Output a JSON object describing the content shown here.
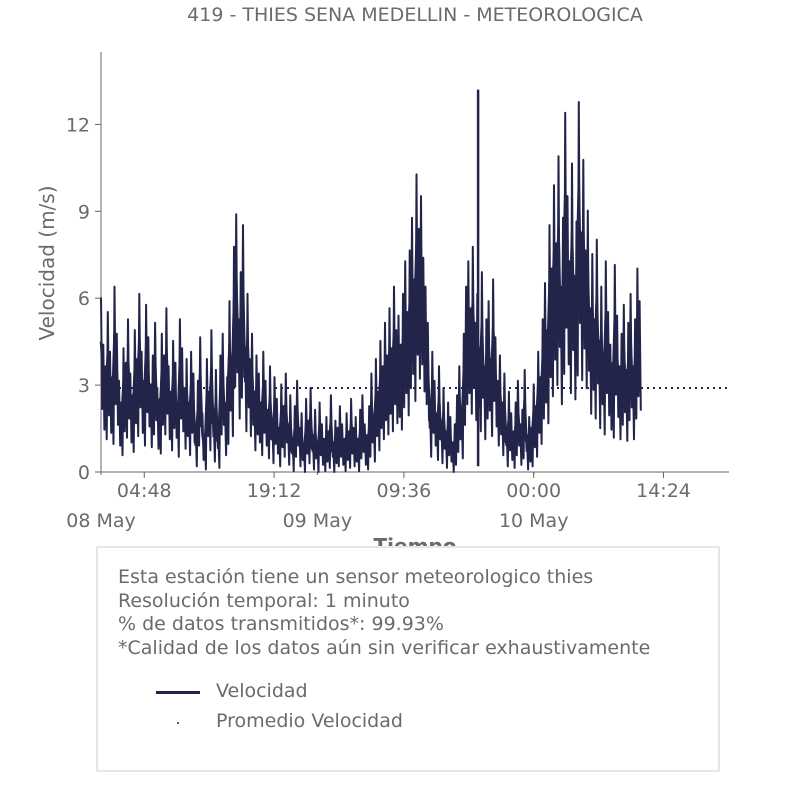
{
  "chart_data": {
    "type": "line",
    "title": "419 - THIES SENA MEDELLIN - METEOROLOGICA",
    "xlabel": "Tiempo",
    "ylabel": "Velocidad (m/s)",
    "ylim": [
      0,
      14.5
    ],
    "yticks": [
      0,
      3,
      6,
      9,
      12
    ],
    "xlim": [
      "2023-05-08 00:00",
      "2023-05-10 21:40"
    ],
    "xticks": [
      {
        "label": "04:48",
        "time": "2023-05-08 04:48"
      },
      {
        "label": "19:12",
        "time": "2023-05-08 19:12"
      },
      {
        "label": "09:36",
        "time": "2023-05-09 09:36"
      },
      {
        "label": "00:00",
        "time": "2023-05-10 00:00"
      },
      {
        "label": "14:24",
        "time": "2023-05-10 14:24"
      }
    ],
    "date_labels": [
      {
        "label": "08 May",
        "time": "2023-05-08 00:00"
      },
      {
        "label": "09 May",
        "time": "2023-05-09 00:00"
      },
      {
        "label": "10 May",
        "time": "2023-05-10 00:00"
      }
    ],
    "grid": false,
    "series": [
      {
        "name": "Velocidad",
        "style": "solid",
        "color": "#22244a",
        "x_start": "2023-05-08 00:00",
        "x_step_minutes": 15,
        "values": [
          4.5,
          3.2,
          2.6,
          4.1,
          3.0,
          2.3,
          4.8,
          3.5,
          2.2,
          1.6,
          3.1,
          2.7,
          3.9,
          2.4,
          1.8,
          3.6,
          2.8,
          4.6,
          3.0,
          2.2,
          4.3,
          3.4,
          2.1,
          2.9,
          3.8,
          2.0,
          1.7,
          3.5,
          2.9,
          4.2,
          2.6,
          1.9,
          3.3,
          2.7,
          1.5,
          3.9,
          3.1,
          2.0,
          2.8,
          1.6,
          3.0,
          2.4,
          0.9,
          2.2,
          3.4,
          1.3,
          0.7,
          2.8,
          1.9,
          3.6,
          1.2,
          2.5,
          0.8,
          2.9,
          3.5,
          1.6,
          2.3,
          4.4,
          2.8,
          5.9,
          6.8,
          3.9,
          5.2,
          6.5,
          3.1,
          4.6,
          2.8,
          3.5,
          1.9,
          2.9,
          2.4,
          1.6,
          3.0,
          2.2,
          1.4,
          2.6,
          1.1,
          2.3,
          1.7,
          0.9,
          2.1,
          1.5,
          2.4,
          1.0,
          1.8,
          0.6,
          1.5,
          2.2,
          0.9,
          1.3,
          0.4,
          1.7,
          1.1,
          2.0,
          0.7,
          1.4,
          0.5,
          1.6,
          1.0,
          0.6,
          1.2,
          0.8,
          1.8,
          0.5,
          1.1,
          0.9,
          1.5,
          1.0,
          0.6,
          1.3,
          0.8,
          1.7,
          0.9,
          1.2,
          0.6,
          1.4,
          1.8,
          1.0,
          0.7,
          1.5,
          2.4,
          1.2,
          2.8,
          1.9,
          3.3,
          2.6,
          3.8,
          2.9,
          4.2,
          3.1,
          4.8,
          3.6,
          4.0,
          3.2,
          4.6,
          5.5,
          4.1,
          5.8,
          6.7,
          5.0,
          7.9,
          6.4,
          7.3,
          5.6,
          4.8,
          3.8,
          1.5,
          3.0,
          2.2,
          1.3,
          2.6,
          1.1,
          2.0,
          0.8,
          1.6,
          1.2,
          0.5,
          1.0,
          1.8,
          2.6,
          1.4,
          3.5,
          4.8,
          5.5,
          4.2,
          5.9,
          3.8,
          4.6,
          3.1,
          5.2,
          2.6,
          3.9,
          4.4,
          2.8,
          5.0,
          3.4,
          2.2,
          2.9,
          1.6,
          2.4,
          0.9,
          1.9,
          1.3,
          0.8,
          1.6,
          2.2,
          1.0,
          1.4,
          2.5,
          0.7,
          1.2,
          0.9,
          2.1,
          1.5,
          3.0,
          2.3,
          3.9,
          4.9,
          3.6,
          6.5,
          5.3,
          7.6,
          6.0,
          8.4,
          4.8,
          6.7,
          9.6,
          7.3,
          5.5,
          8.2,
          5.1,
          6.6,
          9.9,
          6.3,
          8.3,
          5.8,
          6.9,
          4.2,
          5.7,
          3.9,
          6.1,
          3.3,
          4.8,
          2.9,
          5.5,
          4.1,
          3.2,
          2.7,
          5.4,
          4.0,
          2.6,
          3.5,
          4.3,
          2.5,
          3.8,
          4.6,
          2.6,
          3.9,
          5.3,
          4.4
        ]
      },
      {
        "name": "Promedio Velocidad",
        "style": "dotted",
        "color": "#22244a",
        "values": [
          2.9,
          2.9
        ]
      }
    ]
  },
  "info": {
    "lines": [
      "Esta estación tiene un sensor meteorologico thies",
      "Resolución temporal: 1 minuto",
      "% de datos transmitidos*: 99.93%",
      "*Calidad de los datos aún sin verificar exhaustivamente"
    ]
  },
  "legend": {
    "items": [
      "Velocidad",
      "Promedio Velocidad"
    ]
  }
}
